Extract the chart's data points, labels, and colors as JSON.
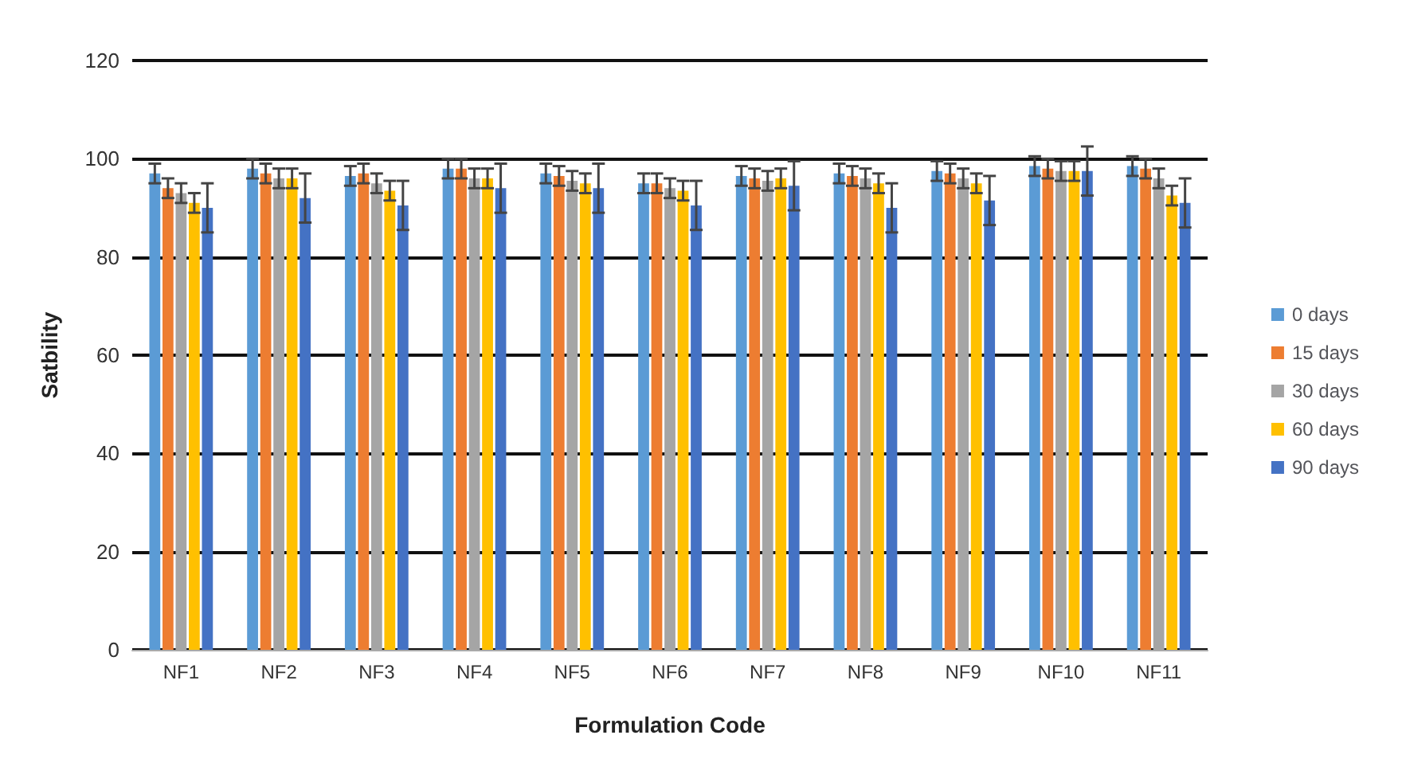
{
  "chart_data": {
    "type": "bar",
    "xlabel": "Formulation Code",
    "ylabel": "Satbility",
    "categories": [
      "NF1",
      "NF2",
      "NF3",
      "NF4",
      "NF5",
      "NF6",
      "NF7",
      "NF8",
      "NF9",
      "NF10",
      "NF11"
    ],
    "series": [
      {
        "name": "0 days",
        "color": "#5b9bd5",
        "values": [
          97,
          98,
          96.5,
          98,
          97,
          95,
          96.5,
          97,
          97.5,
          98.5,
          98.5
        ],
        "errors": [
          2,
          2,
          2,
          2,
          2,
          2,
          2,
          2,
          2,
          2,
          2
        ]
      },
      {
        "name": "15 days",
        "color": "#ed7d31",
        "values": [
          94,
          97,
          97,
          98,
          96.5,
          95,
          96,
          96.5,
          97,
          98,
          98
        ],
        "errors": [
          2,
          2,
          2,
          2,
          2,
          2,
          2,
          2,
          2,
          2,
          2
        ]
      },
      {
        "name": "30 days",
        "color": "#a5a5a5",
        "values": [
          93,
          96,
          95,
          96,
          95.5,
          94,
          95.5,
          96,
          96,
          97.5,
          96
        ],
        "errors": [
          2,
          2,
          2,
          2,
          2,
          2,
          2,
          2,
          2,
          2,
          2
        ]
      },
      {
        "name": "60 days",
        "color": "#ffc000",
        "values": [
          91,
          96,
          93.5,
          96,
          95,
          93.5,
          96,
          95,
          95,
          97.5,
          92.5
        ],
        "errors": [
          2,
          2,
          2,
          2,
          2,
          2,
          2,
          2,
          2,
          2,
          2
        ]
      },
      {
        "name": "90 days",
        "color": "#4472c4",
        "values": [
          90,
          92,
          90.5,
          94,
          94,
          90.5,
          94.5,
          90,
          91.5,
          97.5,
          91
        ],
        "errors": [
          5,
          5,
          5,
          5,
          5,
          5,
          5,
          5,
          5,
          5,
          5
        ]
      }
    ],
    "ylim": [
      0,
      120
    ],
    "yticks": [
      0,
      20,
      40,
      60,
      80,
      100,
      120
    ],
    "grid": "y",
    "legend": "right"
  }
}
